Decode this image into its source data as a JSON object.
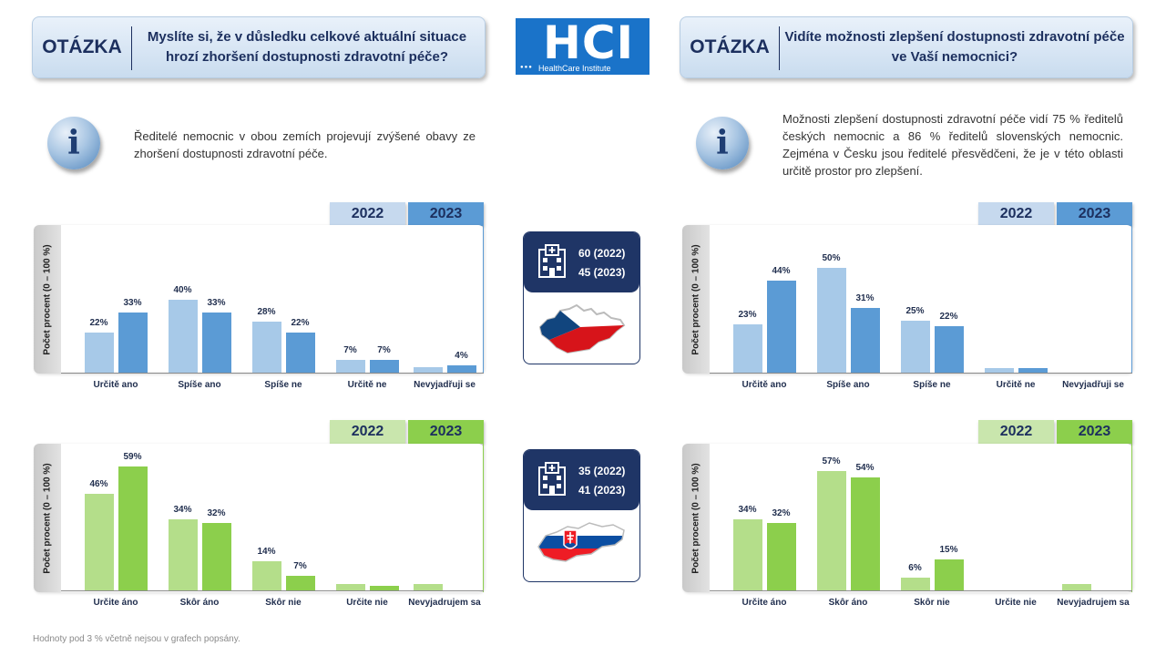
{
  "questions": {
    "left": {
      "label": "OTÁZKA",
      "text": "Myslíte si, že v důsledku celkové aktuální situace hrozí zhoršení dostupnosti zdravotní péče?"
    },
    "right": {
      "label": "OTÁZKA",
      "text": "Vidíte možnosti zlepšení dostupnosti zdravotní péče ve Vaší nemocnici?"
    }
  },
  "logo": {
    "big": "HCI",
    "dots": "●●●",
    "small": "HealthCare Institute"
  },
  "info": {
    "icon": "i",
    "left": "Ředitelé nemocnic v obou zemích projevují zvýšené obavy ze zhoršení dostupnosti zdravotní péče.",
    "right": "Možnosti zlepšení dostupnosti zdravotní péče vidí 75 % ředitelů českých nemocnic a 86 % ředitelů slovenských nemocnic. Zejména v Česku jsou ředitelé přesvědčeni, že je v této oblasti určitě prostor pro zlepšení."
  },
  "center": {
    "cz": {
      "line1": "60 (2022)",
      "line2": "45 (2023)",
      "icon": "hospital-icon",
      "map": "czech-map"
    },
    "sk": {
      "line1": "35 (2022)",
      "line2": "41 (2023)",
      "icon": "hospital-icon",
      "map": "slovakia-map"
    }
  },
  "colors": {
    "blue2022": "#a7c9e8",
    "blue2023": "#5b9bd5",
    "green2022": "#b4de8a",
    "green2023": "#8ccf4c",
    "navy": "#1f3566"
  },
  "footnote": "Hodnoty pod 3 % včetně nejsou v grafech popsány.",
  "chart_data": [
    {
      "type": "bar",
      "id": "cz-worsening",
      "ylabel": "Počet procent  (0 – 100 %)",
      "legend": [
        "2022",
        "2023"
      ],
      "categories": [
        "Určitě ano",
        "Spíše ano",
        "Spíše ne",
        "Určitě ne",
        "Nevyjadřuji se"
      ],
      "series": [
        {
          "name": "2022",
          "values": [
            22,
            40,
            28,
            7,
            3
          ],
          "labels": [
            "22%",
            "40%",
            "28%",
            "7%",
            ""
          ]
        },
        {
          "name": "2023",
          "values": [
            33,
            33,
            22,
            7,
            4
          ],
          "labels": [
            "33%",
            "33%",
            "22%",
            "7%",
            "4%"
          ]
        }
      ],
      "ylim": [
        0,
        60
      ]
    },
    {
      "type": "bar",
      "id": "cz-improvement",
      "ylabel": "Počet procent  (0 – 100 %)",
      "legend": [
        "2022",
        "2023"
      ],
      "categories": [
        "Určitě ano",
        "Spíše ano",
        "Spíše ne",
        "Určitě ne",
        "Nevyjadřuji se"
      ],
      "series": [
        {
          "name": "2022",
          "values": [
            23,
            50,
            25,
            2,
            0
          ],
          "labels": [
            "23%",
            "50%",
            "25%",
            "",
            ""
          ]
        },
        {
          "name": "2023",
          "values": [
            44,
            31,
            22,
            2,
            0
          ],
          "labels": [
            "44%",
            "31%",
            "22%",
            "",
            ""
          ]
        }
      ],
      "ylim": [
        0,
        60
      ]
    },
    {
      "type": "bar",
      "id": "sk-worsening",
      "ylabel": "Počet procent  (0 – 100 %)",
      "legend": [
        "2022",
        "2023"
      ],
      "categories": [
        "Určite áno",
        "Skôr áno",
        "Skôr nie",
        "Určite nie",
        "Nevyjadrujem sa"
      ],
      "series": [
        {
          "name": "2022",
          "values": [
            46,
            34,
            14,
            3,
            3
          ],
          "labels": [
            "46%",
            "34%",
            "14%",
            "",
            ""
          ]
        },
        {
          "name": "2023",
          "values": [
            59,
            32,
            7,
            2,
            0
          ],
          "labels": [
            "59%",
            "32%",
            "7%",
            "",
            ""
          ]
        }
      ],
      "ylim": [
        0,
        65
      ]
    },
    {
      "type": "bar",
      "id": "sk-improvement",
      "ylabel": "Počet procent  (0 – 100 %)",
      "legend": [
        "2022",
        "2023"
      ],
      "categories": [
        "Určite áno",
        "Skôr áno",
        "Skôr nie",
        "Určite nie",
        "Nevyjadrujem sa"
      ],
      "series": [
        {
          "name": "2022",
          "values": [
            34,
            57,
            6,
            0,
            3
          ],
          "labels": [
            "34%",
            "57%",
            "6%",
            "",
            ""
          ]
        },
        {
          "name": "2023",
          "values": [
            32,
            54,
            15,
            0,
            0
          ],
          "labels": [
            "32%",
            "54%",
            "15%",
            "",
            ""
          ]
        }
      ],
      "ylim": [
        0,
        65
      ]
    }
  ]
}
